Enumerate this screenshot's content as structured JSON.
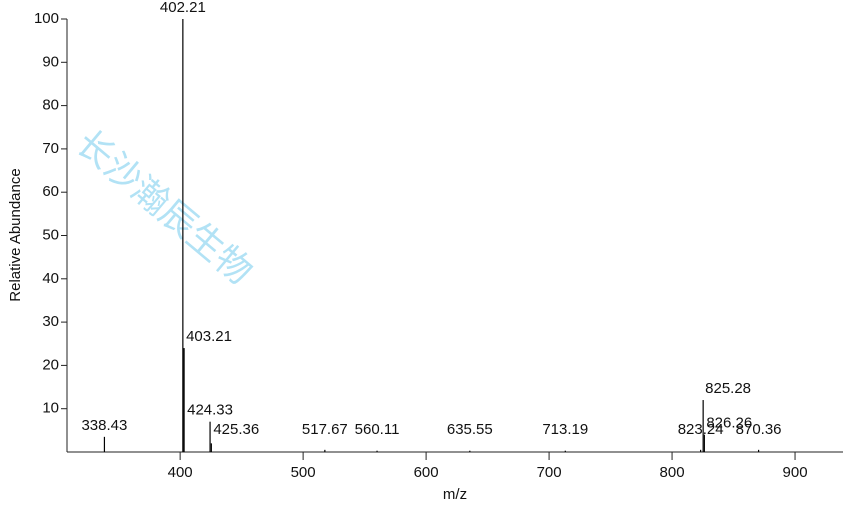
{
  "chart_data": {
    "type": "stem",
    "xlabel": "m/z",
    "ylabel": "Relative Abundance",
    "watermark": "长沙瀚辰生物",
    "x": [
      338.43,
      402.21,
      403.21,
      424.33,
      425.36,
      517.67,
      560.11,
      635.55,
      713.19,
      823.24,
      825.28,
      826.26,
      870.36
    ],
    "values": [
      3.5,
      100,
      24,
      7,
      2,
      0.5,
      0.3,
      0.3,
      0.3,
      0.5,
      12,
      4,
      0.5
    ],
    "color": "#000000",
    "xlim": [
      308,
      939
    ],
    "ylim": [
      0,
      100
    ],
    "xticks": [
      400,
      500,
      600,
      700,
      800,
      900
    ],
    "yticks": [
      10,
      20,
      30,
      40,
      50,
      60,
      70,
      80,
      90,
      100
    ]
  }
}
